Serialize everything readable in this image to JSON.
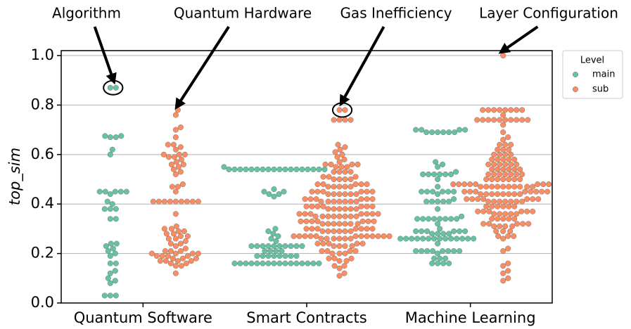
{
  "chart_data": {
    "type": "swarm",
    "ylabel": "top_sim",
    "categories": [
      "Quantum Software",
      "Smart Contracts",
      "Machine Learning"
    ],
    "ylim": [
      0,
      1.02
    ],
    "yticks": [
      {
        "value": 0,
        "label": "0.0"
      },
      {
        "value": 0.2,
        "label": "0.2"
      },
      {
        "value": 0.4,
        "label": "0.4"
      },
      {
        "value": 0.6,
        "label": "0.6"
      },
      {
        "value": 0.8,
        "label": "0.8"
      },
      {
        "value": 1,
        "label": "1.0"
      }
    ],
    "grid": true,
    "legend": {
      "title": "Level",
      "position": "outside right"
    },
    "annotations": [
      {
        "text": "Algorithm",
        "category": "Quantum Software",
        "series": "main",
        "circled": true
      },
      {
        "text": "Quantum Hardware",
        "category": "Quantum Software",
        "series": "sub",
        "circled": false
      },
      {
        "text": "Gas Inefficiency",
        "category": "Smart Contracts",
        "series": "sub",
        "circled": true
      },
      {
        "text": "Layer Configuration",
        "category": "Machine Learning",
        "series": "sub",
        "circled": false
      }
    ],
    "series": [
      {
        "name": "main",
        "color": "#66c2a5",
        "values": [
          [
            0.87,
            0.87,
            0.675,
            0.675,
            0.67,
            0.67,
            0.62,
            0.6,
            0.45,
            0.45,
            0.45,
            0.45,
            0.45,
            0.44,
            0.41,
            0.4,
            0.38,
            0.38,
            0.38,
            0.34,
            0.34,
            0.24,
            0.24,
            0.23,
            0.22,
            0.21,
            0.2,
            0.19,
            0.16,
            0.16,
            0.13,
            0.12,
            0.1,
            0.09,
            0.08,
            0.03,
            0.03,
            0.03
          ],
          [
            0.55,
            0.54,
            0.54,
            0.54,
            0.54,
            0.54,
            0.54,
            0.54,
            0.54,
            0.54,
            0.54,
            0.54,
            0.54,
            0.54,
            0.54,
            0.54,
            0.54,
            0.54,
            0.54,
            0.46,
            0.45,
            0.45,
            0.44,
            0.44,
            0.43,
            0.3,
            0.29,
            0.28,
            0.27,
            0.26,
            0.25,
            0.23,
            0.23,
            0.23,
            0.23,
            0.23,
            0.23,
            0.23,
            0.23,
            0.23,
            0.23,
            0.21,
            0.21,
            0.21,
            0.21,
            0.19,
            0.19,
            0.19,
            0.19,
            0.19,
            0.19,
            0.19,
            0.19,
            0.16,
            0.16,
            0.16,
            0.16,
            0.16,
            0.16,
            0.16,
            0.16,
            0.16,
            0.16,
            0.16,
            0.16,
            0.16,
            0.16,
            0.16,
            0.16
          ],
          [
            0.7,
            0.7,
            0.7,
            0.7,
            0.69,
            0.69,
            0.69,
            0.69,
            0.69,
            0.69,
            0.57,
            0.56,
            0.55,
            0.53,
            0.52,
            0.52,
            0.52,
            0.52,
            0.52,
            0.52,
            0.5,
            0.47,
            0.45,
            0.45,
            0.45,
            0.45,
            0.45,
            0.45,
            0.44,
            0.42,
            0.41,
            0.41,
            0.41,
            0.41,
            0.41,
            0.38,
            0.35,
            0.34,
            0.34,
            0.34,
            0.34,
            0.34,
            0.34,
            0.34,
            0.34,
            0.32,
            0.3,
            0.29,
            0.29,
            0.29,
            0.29,
            0.29,
            0.29,
            0.28,
            0.28,
            0.28,
            0.28,
            0.26,
            0.26,
            0.26,
            0.26,
            0.26,
            0.26,
            0.26,
            0.26,
            0.26,
            0.26,
            0.26,
            0.26,
            0.26,
            0.26,
            0.24,
            0.21,
            0.21,
            0.21,
            0.21,
            0.21,
            0.21,
            0.21,
            0.21,
            0.2,
            0.18,
            0.18,
            0.18,
            0.16,
            0.16,
            0.16,
            0.16
          ]
        ]
      },
      {
        "name": "sub",
        "color": "#fc8d62",
        "values": [
          [
            0.78,
            0.76,
            0.71,
            0.7,
            0.67,
            0.64,
            0.64,
            0.63,
            0.62,
            0.6,
            0.6,
            0.6,
            0.59,
            0.59,
            0.58,
            0.57,
            0.56,
            0.56,
            0.55,
            0.54,
            0.53,
            0.52,
            0.48,
            0.47,
            0.47,
            0.45,
            0.41,
            0.41,
            0.41,
            0.41,
            0.41,
            0.41,
            0.41,
            0.41,
            0.41,
            0.36,
            0.31,
            0.3,
            0.3,
            0.29,
            0.29,
            0.28,
            0.28,
            0.27,
            0.27,
            0.26,
            0.26,
            0.25,
            0.24,
            0.24,
            0.23,
            0.22,
            0.21,
            0.21,
            0.21,
            0.2,
            0.2,
            0.2,
            0.2,
            0.19,
            0.19,
            0.19,
            0.19,
            0.18,
            0.18,
            0.18,
            0.17,
            0.17,
            0.17,
            0.17,
            0.16,
            0.16,
            0.15,
            0.15,
            0.12
          ],
          [
            0.78,
            0.78,
            0.74,
            0.74,
            0.74,
            0.74,
            0.64,
            0.63,
            0.62,
            0.61,
            0.6,
            0.59,
            0.58,
            0.57,
            0.56,
            0.56,
            0.56,
            0.56,
            0.55,
            0.55,
            0.55,
            0.53,
            0.53,
            0.53,
            0.53,
            0.51,
            0.51,
            0.51,
            0.5,
            0.5,
            0.5,
            0.5,
            0.48,
            0.48,
            0.48,
            0.48,
            0.48,
            0.47,
            0.47,
            0.47,
            0.47,
            0.47,
            0.45,
            0.45,
            0.45,
            0.45,
            0.45,
            0.45,
            0.44,
            0.44,
            0.44,
            0.44,
            0.44,
            0.44,
            0.42,
            0.42,
            0.42,
            0.42,
            0.42,
            0.42,
            0.41,
            0.41,
            0.41,
            0.41,
            0.41,
            0.41,
            0.41,
            0.39,
            0.39,
            0.39,
            0.39,
            0.39,
            0.39,
            0.39,
            0.38,
            0.38,
            0.38,
            0.38,
            0.38,
            0.38,
            0.36,
            0.36,
            0.36,
            0.36,
            0.36,
            0.36,
            0.36,
            0.35,
            0.35,
            0.35,
            0.35,
            0.35,
            0.35,
            0.35,
            0.35,
            0.33,
            0.33,
            0.33,
            0.33,
            0.33,
            0.33,
            0.33,
            0.32,
            0.32,
            0.32,
            0.32,
            0.32,
            0.32,
            0.32,
            0.3,
            0.3,
            0.3,
            0.3,
            0.3,
            0.3,
            0.3,
            0.29,
            0.29,
            0.29,
            0.29,
            0.29,
            0.29,
            0.27,
            0.27,
            0.27,
            0.27,
            0.27,
            0.27,
            0.27,
            0.27,
            0.27,
            0.27,
            0.27,
            0.27,
            0.26,
            0.26,
            0.26,
            0.26,
            0.26,
            0.26,
            0.24,
            0.24,
            0.24,
            0.24,
            0.24,
            0.23,
            0.23,
            0.23,
            0.23,
            0.21,
            0.21,
            0.21,
            0.21,
            0.2,
            0.2,
            0.2,
            0.18,
            0.18,
            0.18,
            0.17,
            0.17,
            0.15,
            0.15,
            0.14,
            0.12,
            0.11
          ],
          [
            1,
            0.78,
            0.78,
            0.78,
            0.78,
            0.78,
            0.78,
            0.78,
            0.78,
            0.76,
            0.74,
            0.74,
            0.74,
            0.74,
            0.74,
            0.74,
            0.74,
            0.74,
            0.74,
            0.74,
            0.72,
            0.69,
            0.67,
            0.66,
            0.64,
            0.64,
            0.64,
            0.62,
            0.62,
            0.62,
            0.6,
            0.6,
            0.6,
            0.6,
            0.58,
            0.58,
            0.58,
            0.58,
            0.58,
            0.56,
            0.56,
            0.56,
            0.56,
            0.56,
            0.56,
            0.54,
            0.54,
            0.54,
            0.54,
            0.54,
            0.54,
            0.52,
            0.52,
            0.52,
            0.52,
            0.52,
            0.52,
            0.52,
            0.5,
            0.5,
            0.5,
            0.5,
            0.5,
            0.5,
            0.5,
            0.48,
            0.48,
            0.48,
            0.48,
            0.48,
            0.48,
            0.48,
            0.48,
            0.47,
            0.47,
            0.47,
            0.47,
            0.47,
            0.47,
            0.47,
            0.47,
            0.47,
            0.47,
            0.45,
            0.45,
            0.45,
            0.45,
            0.45,
            0.45,
            0.45,
            0.45,
            0.44,
            0.44,
            0.44,
            0.44,
            0.44,
            0.44,
            0.44,
            0.44,
            0.42,
            0.42,
            0.42,
            0.42,
            0.42,
            0.42,
            0.42,
            0.41,
            0.41,
            0.41,
            0.41,
            0.41,
            0.41,
            0.41,
            0.39,
            0.39,
            0.39,
            0.39,
            0.39,
            0.39,
            0.37,
            0.37,
            0.37,
            0.37,
            0.37,
            0.37,
            0.36,
            0.36,
            0.36,
            0.36,
            0.36,
            0.34,
            0.34,
            0.34,
            0.34,
            0.34,
            0.32,
            0.32,
            0.32,
            0.32,
            0.32,
            0.31,
            0.31,
            0.31,
            0.31,
            0.29,
            0.29,
            0.29,
            0.27,
            0.27,
            0.27,
            0.26,
            0.22,
            0.21,
            0.16,
            0.15,
            0.13,
            0.12,
            0.1,
            0.09
          ]
        ]
      }
    ]
  }
}
